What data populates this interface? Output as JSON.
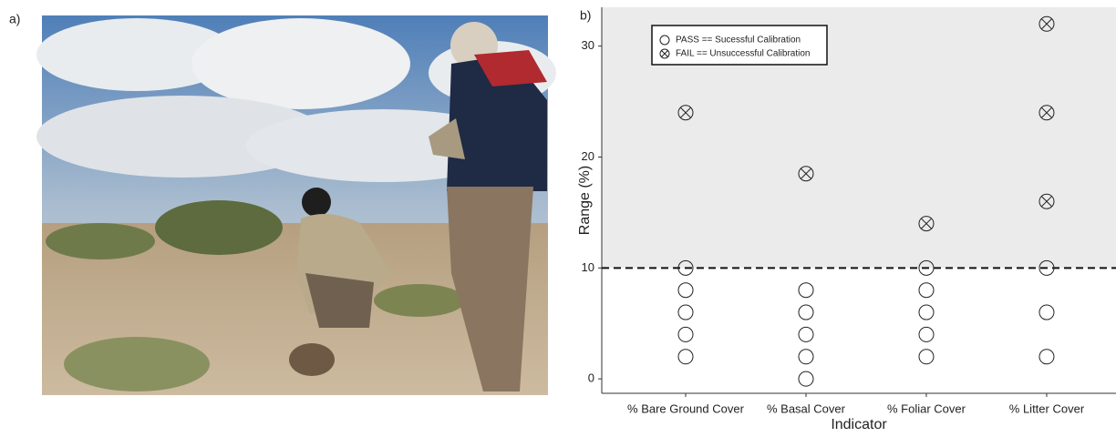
{
  "panels": {
    "a": "a)",
    "b": "b)"
  },
  "chart_data": {
    "type": "scatter",
    "xlabel": "Indicator",
    "ylabel": "Range (%)",
    "categories": [
      "% Bare Ground Cover",
      "% Basal Cover",
      "% Foliar Cover",
      "% Litter Cover"
    ],
    "ylim": [
      -1.3,
      33.5
    ],
    "yticks": [
      0,
      10,
      20,
      30
    ],
    "threshold": 10,
    "series": [
      {
        "name": "PASS == Sucessful Calibration",
        "marker": "circle",
        "x": [
          "% Bare Ground Cover",
          "% Bare Ground Cover",
          "% Bare Ground Cover",
          "% Bare Ground Cover",
          "% Bare Ground Cover",
          "% Basal Cover",
          "% Basal Cover",
          "% Basal Cover",
          "% Basal Cover",
          "% Basal Cover",
          "% Foliar Cover",
          "% Foliar Cover",
          "% Foliar Cover",
          "% Foliar Cover",
          "% Foliar Cover",
          "% Litter Cover",
          "% Litter Cover",
          "% Litter Cover"
        ],
        "values": [
          2,
          4,
          6,
          8,
          10,
          0,
          2,
          4,
          6,
          8,
          2,
          4,
          6,
          8,
          10,
          2,
          6,
          10
        ]
      },
      {
        "name": "FAIL == Unsuccessful Calibration",
        "marker": "crossed-circle",
        "x": [
          "% Bare Ground Cover",
          "% Basal Cover",
          "% Foliar Cover",
          "% Litter Cover",
          "% Litter Cover",
          "% Litter Cover"
        ],
        "values": [
          24,
          18.5,
          14,
          16,
          24,
          32
        ]
      }
    ]
  }
}
